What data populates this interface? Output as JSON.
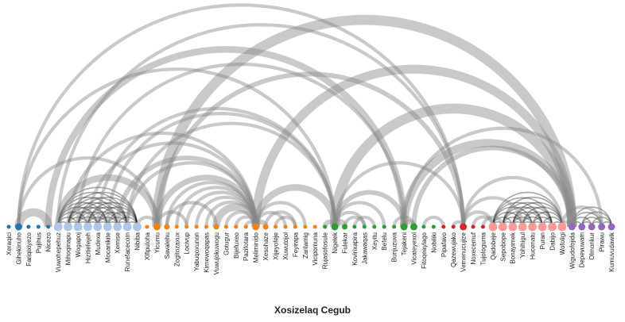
{
  "chart_data": {
    "type": "arc",
    "title": "Xosizelaq Cegub",
    "groups": [
      {
        "color": "#1f77b4",
        "light": "#aec7e8",
        "nodes": [
          "Xeraqici",
          "Gihekinuho",
          "Fariqixiyezo",
          "Pujihus",
          "Nicezo",
          "Vuwohepehuz",
          "Mihoqinapu",
          "Wogapoj",
          "Hizitiefejeh",
          "Mudexa",
          "Mocanikite",
          "Xemise",
          "Runefacecom",
          "Nibiba"
        ]
      },
      {
        "color": "#ff7f0e",
        "light": "#ffbb78",
        "nodes": [
          "Xifipuloha",
          "Yicumu",
          "Savalehu",
          "Zogitozaxux",
          "Locivup",
          "Yabuqoxunon",
          "Kirnewoqapas",
          "Vuwujokuwogu",
          "Gotugur",
          "Bijefuxeo",
          "Pazifotara",
          "Meliminido",
          "Xesohaze",
          "Xijeyofeje",
          "Xuwutojol",
          "Feyirapa",
          "Zarilamig",
          "Vicipomuna"
        ]
      },
      {
        "color": "#2ca02c",
        "light": "#98df8a",
        "nodes": [
          "Rujasofosule",
          "Nigelek",
          "Fulekar",
          "Kovirixapira",
          "Jakawaqas",
          "Xeyitu",
          "Befelu",
          "Bunjuzuva",
          "Tejakeni",
          "Vicateyexol",
          "Fitoqeaylago",
          "Nobiliki"
        ]
      },
      {
        "color": "#d62728",
        "light": "#ff9896",
        "nodes": [
          "Pipafavo",
          "Qazewujako",
          "Vemenucujize",
          "Noxecemuf",
          "Tujologuma",
          "Qadobeje",
          "Sepobope",
          "Bonayimek",
          "Yohihigul",
          "Hucenatu",
          "Puran",
          "Dabijo",
          "Wofoligi"
        ]
      },
      {
        "color": "#9467bd",
        "light": "#c5b0d5",
        "nodes": [
          "Wigudofojida",
          "Depevuwam",
          "Olmonkur",
          "Pirawu",
          "Kumuvudawik"
        ]
      }
    ],
    "nodes": [
      {
        "name": "Xeraqici",
        "group": 0,
        "size": 1
      },
      {
        "name": "Gihekinuho",
        "group": 0,
        "size": 3
      },
      {
        "name": "Fariqixiyezo",
        "group": 0,
        "size": 1
      },
      {
        "name": "Pujihus",
        "group": 0,
        "size": 1
      },
      {
        "name": "Nicezo",
        "group": 0,
        "size": 1
      },
      {
        "name": "Vuwohepehuz",
        "group": 0,
        "size": 4
      },
      {
        "name": "Mihoqinapu",
        "group": 0,
        "size": 4
      },
      {
        "name": "Wogapoj",
        "group": 0,
        "size": 4
      },
      {
        "name": "Hizitiefejeh",
        "group": 0,
        "size": 4
      },
      {
        "name": "Mudexa",
        "group": 0,
        "size": 4
      },
      {
        "name": "Mocanikite",
        "group": 0,
        "size": 4
      },
      {
        "name": "Xemise",
        "group": 0,
        "size": 4
      },
      {
        "name": "Runefacecom",
        "group": 0,
        "size": 4
      },
      {
        "name": "Nibiba",
        "group": 0,
        "size": 4
      },
      {
        "name": "Xifipuloha",
        "group": 1,
        "size": 1
      },
      {
        "name": "Yicumu",
        "group": 1,
        "size": 3
      },
      {
        "name": "Savalehu",
        "group": 1,
        "size": 2
      },
      {
        "name": "Zogitozaxux",
        "group": 1,
        "size": 1
      },
      {
        "name": "Locivup",
        "group": 1,
        "size": 1
      },
      {
        "name": "Yabuqoxunon",
        "group": 1,
        "size": 1
      },
      {
        "name": "Kirnewoqapas",
        "group": 1,
        "size": 1
      },
      {
        "name": "Vuwujokuwogu",
        "group": 1,
        "size": 2
      },
      {
        "name": "Gotugur",
        "group": 1,
        "size": 1
      },
      {
        "name": "Bijefuxeo",
        "group": 1,
        "size": 1
      },
      {
        "name": "Pazifotara",
        "group": 1,
        "size": 1
      },
      {
        "name": "Meliminido",
        "group": 1,
        "size": 3
      },
      {
        "name": "Xesohaze",
        "group": 1,
        "size": 2
      },
      {
        "name": "Xijeyofeje",
        "group": 1,
        "size": 1
      },
      {
        "name": "Xuwutojol",
        "group": 1,
        "size": 1
      },
      {
        "name": "Feyirapa",
        "group": 1,
        "size": 1
      },
      {
        "name": "Zarilamig",
        "group": 1,
        "size": 1
      },
      {
        "name": "Vicipomuna",
        "group": 1,
        "size": 1
      },
      {
        "name": "Rujasofosule",
        "group": 2,
        "size": 1
      },
      {
        "name": "Nigelek",
        "group": 2,
        "size": 3
      },
      {
        "name": "Fulekar",
        "group": 2,
        "size": 2
      },
      {
        "name": "Kovirixapira",
        "group": 2,
        "size": 1
      },
      {
        "name": "Jakawaqas",
        "group": 2,
        "size": 1
      },
      {
        "name": "Xeyitu",
        "group": 2,
        "size": 1
      },
      {
        "name": "Befelu",
        "group": 2,
        "size": 1
      },
      {
        "name": "Bunjuzuva",
        "group": 2,
        "size": 1
      },
      {
        "name": "Tejakeni",
        "group": 2,
        "size": 3
      },
      {
        "name": "Vicateyexol",
        "group": 2,
        "size": 3
      },
      {
        "name": "Fitoqeaylago",
        "group": 2,
        "size": 1
      },
      {
        "name": "Nobiliki",
        "group": 2,
        "size": 1
      },
      {
        "name": "Pipafavo",
        "group": 3,
        "size": 1
      },
      {
        "name": "Qazewujako",
        "group": 3,
        "size": 1
      },
      {
        "name": "Vemenucujize",
        "group": 3,
        "size": 3
      },
      {
        "name": "Noxecemuf",
        "group": 3,
        "size": 1
      },
      {
        "name": "Tujologuma",
        "group": 3,
        "size": 1
      },
      {
        "name": "Qadobeje",
        "group": 3,
        "size": 4
      },
      {
        "name": "Sepobope",
        "group": 3,
        "size": 4
      },
      {
        "name": "Bonayimek",
        "group": 3,
        "size": 4
      },
      {
        "name": "Yohihigul",
        "group": 3,
        "size": 4
      },
      {
        "name": "Hucenatu",
        "group": 3,
        "size": 4
      },
      {
        "name": "Puran",
        "group": 3,
        "size": 4
      },
      {
        "name": "Dabijo",
        "group": 3,
        "size": 4
      },
      {
        "name": "Wofoligi",
        "group": 3,
        "size": 4
      },
      {
        "name": "Wigudofojida",
        "group": 4,
        "size": 3
      },
      {
        "name": "Depevuwam",
        "group": 4,
        "size": 3
      },
      {
        "name": "Olmonkur",
        "group": 4,
        "size": 3
      },
      {
        "name": "Pirawu",
        "group": 4,
        "size": 3
      },
      {
        "name": "Kumuvudawik",
        "group": 4,
        "size": 3
      }
    ],
    "clusters": [
      {
        "from": 5,
        "to": 13
      },
      {
        "from": 49,
        "to": 56
      },
      {
        "from": 57,
        "to": 61
      }
    ],
    "links": [
      {
        "source": 1,
        "target": 4,
        "weight": 6
      },
      {
        "source": 1,
        "target": 15,
        "weight": 1
      },
      {
        "source": 1,
        "target": 33,
        "weight": 1
      },
      {
        "source": 1,
        "target": 46,
        "weight": 1
      },
      {
        "source": 4,
        "target": 40,
        "weight": 4
      },
      {
        "source": 5,
        "target": 46,
        "weight": 1
      },
      {
        "source": 6,
        "target": 25,
        "weight": 1
      },
      {
        "source": 7,
        "target": 40,
        "weight": 1
      },
      {
        "source": 8,
        "target": 25,
        "weight": 1
      },
      {
        "source": 9,
        "target": 33,
        "weight": 1
      },
      {
        "source": 10,
        "target": 33,
        "weight": 1
      },
      {
        "source": 11,
        "target": 25,
        "weight": 2
      },
      {
        "source": 12,
        "target": 25,
        "weight": 1
      },
      {
        "source": 12,
        "target": 33,
        "weight": 1
      },
      {
        "source": 13,
        "target": 15,
        "weight": 1
      },
      {
        "source": 5,
        "target": 15,
        "weight": 4
      },
      {
        "source": 15,
        "target": 46,
        "weight": 2
      },
      {
        "source": 15,
        "target": 57,
        "weight": 9
      },
      {
        "source": 15,
        "target": 25,
        "weight": 3
      },
      {
        "source": 15,
        "target": 18,
        "weight": 1
      },
      {
        "source": 16,
        "target": 25,
        "weight": 1
      },
      {
        "source": 16,
        "target": 21,
        "weight": 1
      },
      {
        "source": 17,
        "target": 25,
        "weight": 1
      },
      {
        "source": 18,
        "target": 25,
        "weight": 1
      },
      {
        "source": 19,
        "target": 25,
        "weight": 1
      },
      {
        "source": 20,
        "target": 25,
        "weight": 1
      },
      {
        "source": 21,
        "target": 25,
        "weight": 5
      },
      {
        "source": 22,
        "target": 25,
        "weight": 1
      },
      {
        "source": 23,
        "target": 25,
        "weight": 1
      },
      {
        "source": 24,
        "target": 25,
        "weight": 1
      },
      {
        "source": 25,
        "target": 26,
        "weight": 2
      },
      {
        "source": 25,
        "target": 28,
        "weight": 1
      },
      {
        "source": 25,
        "target": 30,
        "weight": 1
      },
      {
        "source": 25,
        "target": 33,
        "weight": 4
      },
      {
        "source": 25,
        "target": 57,
        "weight": 7
      },
      {
        "source": 26,
        "target": 29,
        "weight": 1
      },
      {
        "source": 27,
        "target": 29,
        "weight": 1
      },
      {
        "source": 32,
        "target": 33,
        "weight": 2
      },
      {
        "source": 33,
        "target": 34,
        "weight": 3
      },
      {
        "source": 33,
        "target": 36,
        "weight": 1
      },
      {
        "source": 33,
        "target": 38,
        "weight": 1
      },
      {
        "source": 33,
        "target": 40,
        "weight": 2
      },
      {
        "source": 33,
        "target": 46,
        "weight": 1
      },
      {
        "source": 33,
        "target": 57,
        "weight": 9
      },
      {
        "source": 34,
        "target": 36,
        "weight": 1
      },
      {
        "source": 35,
        "target": 37,
        "weight": 1
      },
      {
        "source": 39,
        "target": 41,
        "weight": 1
      },
      {
        "source": 40,
        "target": 41,
        "weight": 2
      },
      {
        "source": 40,
        "target": 57,
        "weight": 6
      },
      {
        "source": 40,
        "target": 60,
        "weight": 1
      },
      {
        "source": 41,
        "target": 57,
        "weight": 2
      },
      {
        "source": 42,
        "target": 44,
        "weight": 1
      },
      {
        "source": 45,
        "target": 46,
        "weight": 1
      },
      {
        "source": 46,
        "target": 49,
        "weight": 1
      },
      {
        "source": 46,
        "target": 52,
        "weight": 1
      },
      {
        "source": 46,
        "target": 56,
        "weight": 1
      },
      {
        "source": 47,
        "target": 49,
        "weight": 1
      },
      {
        "source": 48,
        "target": 50,
        "weight": 1
      },
      {
        "source": 56,
        "target": 57,
        "weight": 1
      },
      {
        "source": 56,
        "target": 60,
        "weight": 1
      }
    ]
  }
}
